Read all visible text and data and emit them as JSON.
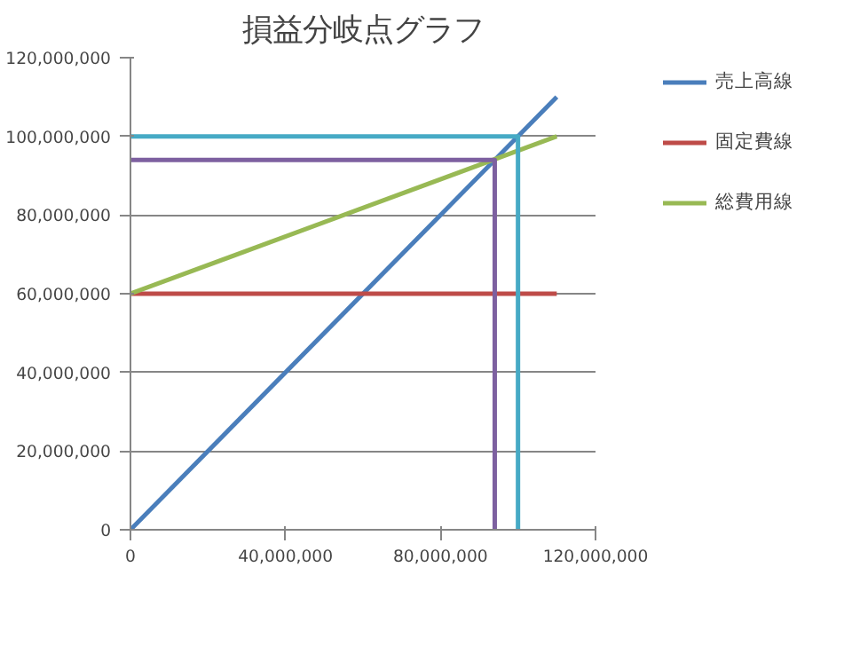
{
  "chart_data": {
    "type": "line",
    "title": "損益分岐点グラフ",
    "xlim": [
      0,
      120000000
    ],
    "ylim": [
      0,
      120000000
    ],
    "xticks": [
      0,
      {
        "value": 40000000,
        "label": "40,000,000"
      },
      {
        "value": 80000000,
        "label": "80,000,000"
      },
      {
        "value": 120000000,
        "label": "120,000,000"
      }
    ],
    "yticks": [
      0,
      {
        "value": 20000000,
        "label": "20,000,000"
      },
      {
        "value": 40000000,
        "label": "40,000,000"
      },
      {
        "value": 60000000,
        "label": "60,000,000"
      },
      {
        "value": 80000000,
        "label": "80,000,000"
      },
      {
        "value": 100000000,
        "label": "100,000,000"
      },
      {
        "value": 120000000,
        "label": "120,000,000"
      }
    ],
    "grid": "y",
    "legend": "right",
    "marker": "none",
    "line_style": "solid",
    "series": [
      {
        "name": "売上高線",
        "color": "#4a7ebb",
        "x": [
          0,
          110000000
        ],
        "values": [
          0,
          110000000
        ]
      },
      {
        "name": "固定費線",
        "color": "#be4b48",
        "x": [
          0,
          110000000
        ],
        "values": [
          60000000,
          60000000
        ]
      },
      {
        "name": "総費用線",
        "color": "#98b954",
        "x": [
          0,
          110000000
        ],
        "values": [
          60000000,
          100000000
        ]
      },
      {
        "color": "#7d60a0",
        "x": [
          0,
          94000000,
          94000000
        ],
        "values": [
          94000000,
          94000000,
          0
        ]
      },
      {
        "color": "#46aac5",
        "x": [
          0,
          100000000,
          100000000
        ],
        "values": [
          100000000,
          100000000,
          0
        ]
      }
    ]
  }
}
